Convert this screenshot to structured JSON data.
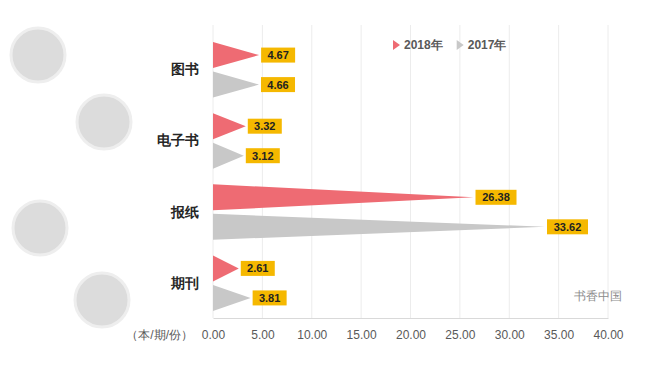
{
  "chart_data": {
    "type": "bar",
    "orientation": "horizontal",
    "categories": [
      "图书",
      "电子书",
      "报纸",
      "期刊"
    ],
    "series": [
      {
        "name": "2018年",
        "color": "#ee6b73",
        "values": [
          4.67,
          3.32,
          26.38,
          2.61
        ]
      },
      {
        "name": "2017年",
        "color": "#c8c8c8",
        "values": [
          4.66,
          3.12,
          33.62,
          3.81
        ]
      }
    ],
    "x_label": "（本/期/份）",
    "xlim": [
      0,
      40
    ],
    "xticks": [
      {
        "value": 0,
        "label": "0.00"
      },
      {
        "value": 5,
        "label": "5.00"
      },
      {
        "value": 10,
        "label": "10.00"
      },
      {
        "value": 15,
        "label": "15.00"
      },
      {
        "value": 20,
        "label": "20.00"
      },
      {
        "value": 25,
        "label": "25.00"
      },
      {
        "value": 30,
        "label": "30.00"
      },
      {
        "value": 35,
        "label": "35.00"
      },
      {
        "value": 40,
        "label": "40.00"
      }
    ],
    "grid": true,
    "legend": "top-right",
    "data_labels": true,
    "annotations": [
      "书香中国"
    ]
  }
}
